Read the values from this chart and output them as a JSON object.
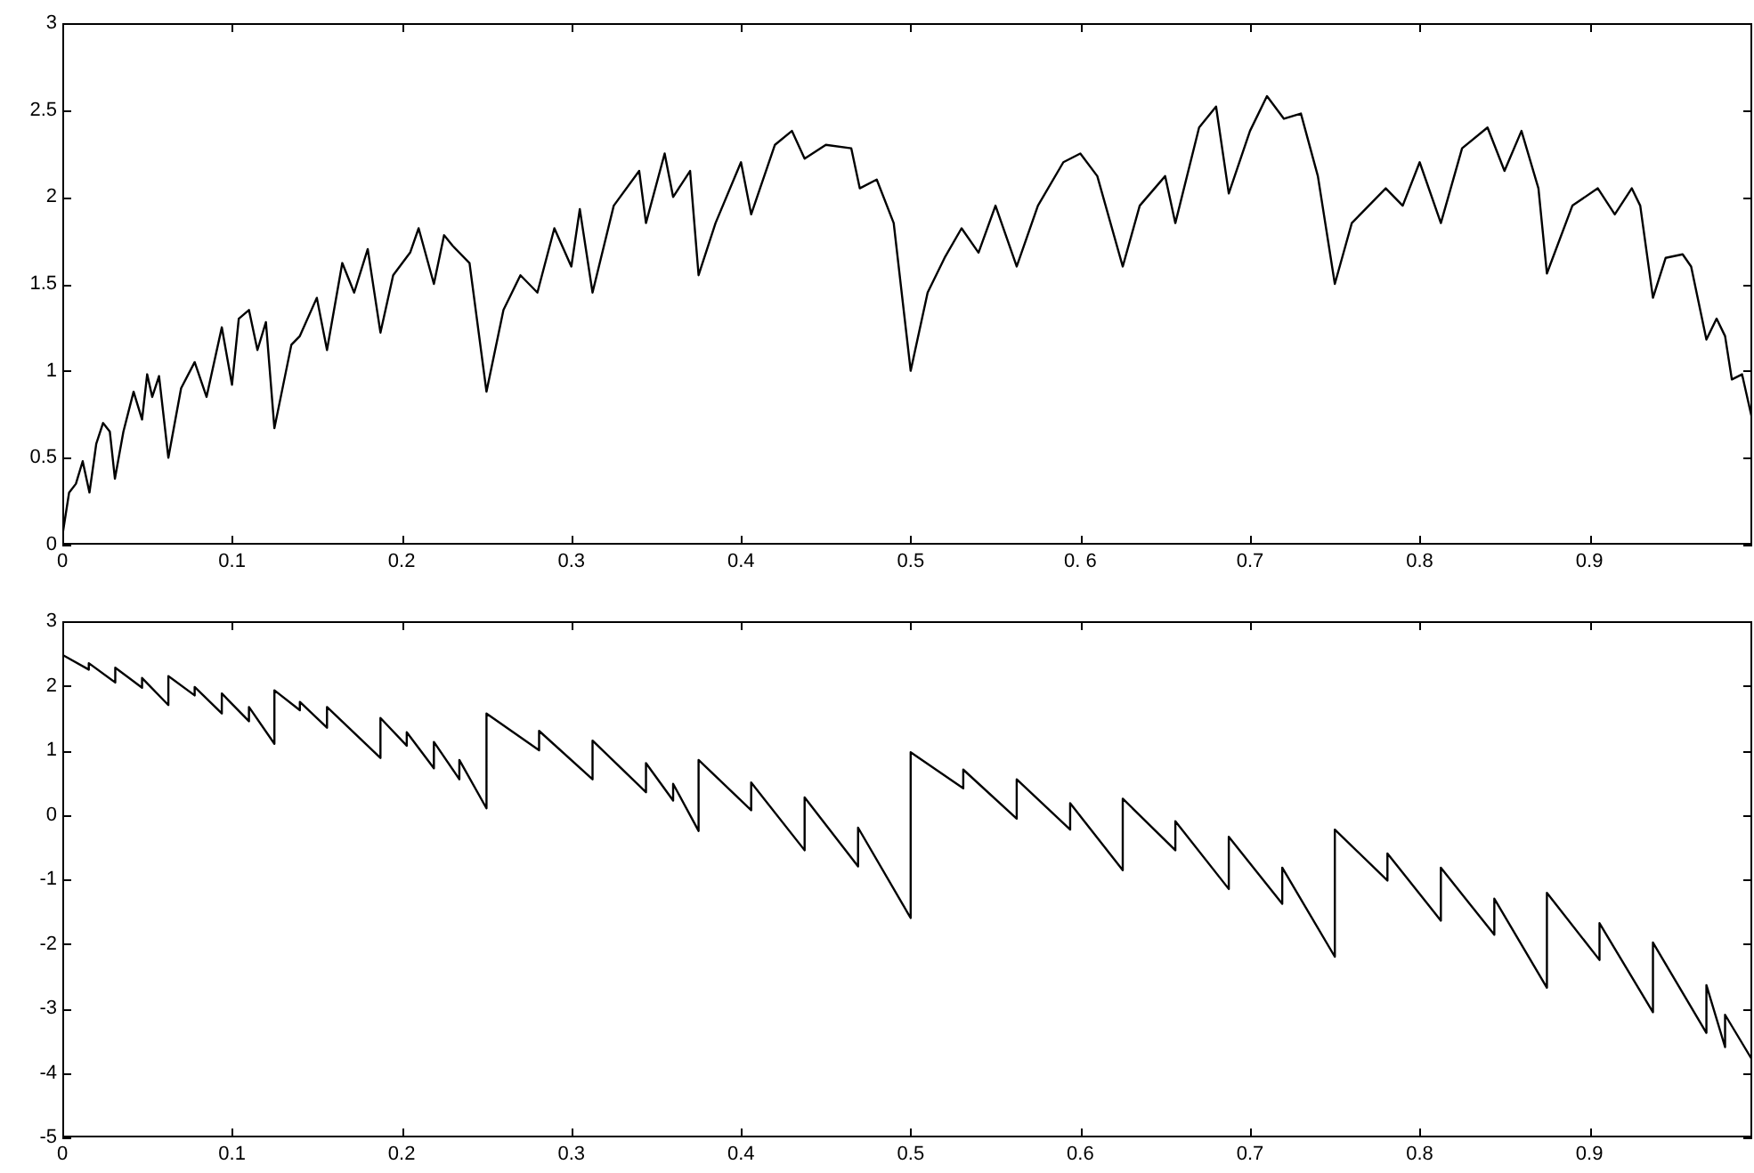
{
  "chart_data": [
    {
      "type": "line",
      "xlim": [
        0,
        0.996
      ],
      "ylim": [
        0,
        3
      ],
      "xticks": [
        0,
        0.1,
        0.2,
        0.3,
        0.4,
        0.5,
        {
          "value": 0.6,
          "label": "0. 6"
        },
        0.7,
        0.8,
        0.9
      ],
      "yticks": [
        0,
        0.5,
        1,
        1.5,
        2,
        2.5,
        3
      ],
      "grid": false,
      "legend": false,
      "marker": "none",
      "line_style": "solid",
      "series": [
        {
          "color": "#000000",
          "x": [
            0,
            0.004,
            0.008,
            0.012,
            0.016,
            0.02,
            0.024,
            0.028,
            0.031,
            0.036,
            0.042,
            0.047,
            0.05,
            0.053,
            0.057,
            0.0625,
            0.07,
            0.078,
            0.085,
            0.094,
            0.1,
            0.104,
            0.11,
            0.115,
            0.12,
            0.125,
            0.135,
            0.14,
            0.15,
            0.156,
            0.165,
            0.172,
            0.18,
            0.1875,
            0.195,
            0.205,
            0.21,
            0.219,
            0.225,
            0.23,
            0.24,
            0.25,
            0.26,
            0.27,
            0.28,
            0.29,
            0.3,
            0.305,
            0.3125,
            0.325,
            0.34,
            0.344,
            0.355,
            0.36,
            0.37,
            0.375,
            0.385,
            0.4,
            0.406,
            0.42,
            0.43,
            0.4375,
            0.45,
            0.465,
            0.47,
            0.48,
            0.49,
            0.5,
            0.51,
            0.52,
            0.53,
            0.54,
            0.55,
            0.5625,
            0.575,
            0.59,
            0.6,
            0.61,
            0.625,
            0.635,
            0.65,
            0.656,
            0.67,
            0.68,
            0.6875,
            0.7,
            0.71,
            0.72,
            0.73,
            0.74,
            0.75,
            0.76,
            0.78,
            0.79,
            0.8,
            0.8125,
            0.825,
            0.84,
            0.85,
            0.86,
            0.87,
            0.875,
            0.89,
            0.905,
            0.915,
            0.925,
            0.93,
            0.9375,
            0.945,
            0.955,
            0.96,
            0.969,
            0.975,
            0.98,
            0.984,
            0.99,
            0.996
          ],
          "values": [
            0.05,
            0.3,
            0.35,
            0.48,
            0.3,
            0.58,
            0.7,
            0.65,
            0.38,
            0.65,
            0.88,
            0.72,
            0.98,
            0.85,
            0.97,
            0.5,
            0.9,
            1.05,
            0.85,
            1.25,
            0.92,
            1.3,
            1.35,
            1.12,
            1.28,
            0.67,
            1.15,
            1.2,
            1.42,
            1.12,
            1.62,
            1.45,
            1.7,
            1.22,
            1.55,
            1.68,
            1.82,
            1.5,
            1.78,
            1.72,
            1.62,
            0.88,
            1.35,
            1.55,
            1.45,
            1.82,
            1.6,
            1.93,
            1.45,
            1.95,
            2.15,
            1.85,
            2.25,
            2.0,
            2.15,
            1.55,
            1.85,
            2.2,
            1.9,
            2.3,
            2.38,
            2.22,
            2.3,
            2.28,
            2.05,
            2.1,
            1.85,
            1.0,
            1.45,
            1.65,
            1.82,
            1.68,
            1.95,
            1.6,
            1.95,
            2.2,
            2.25,
            2.12,
            1.6,
            1.95,
            2.12,
            1.85,
            2.4,
            2.52,
            2.02,
            2.38,
            2.58,
            2.45,
            2.48,
            2.12,
            1.5,
            1.85,
            2.05,
            1.95,
            2.2,
            1.85,
            2.28,
            2.4,
            2.15,
            2.38,
            2.05,
            1.56,
            1.95,
            2.05,
            1.9,
            2.05,
            1.95,
            1.42,
            1.65,
            1.67,
            1.6,
            1.18,
            1.3,
            1.2,
            0.95,
            0.98,
            0.72
          ]
        }
      ]
    },
    {
      "type": "line",
      "xlim": [
        0,
        0.996
      ],
      "ylim": [
        -5,
        3
      ],
      "xticks": [
        0,
        0.1,
        0.2,
        0.3,
        0.4,
        0.5,
        0.6,
        0.7,
        0.8,
        0.9
      ],
      "yticks": [
        -5,
        -4,
        -3,
        -2,
        -1,
        0,
        1,
        2,
        3
      ],
      "grid": false,
      "legend": false,
      "marker": "none",
      "line_style": "solid",
      "series": [
        {
          "color": "#000000",
          "x": [
            0,
            0.0156,
            0.0156,
            0.0312,
            0.0312,
            0.047,
            0.047,
            0.0625,
            0.0625,
            0.078,
            0.078,
            0.094,
            0.094,
            0.11,
            0.11,
            0.125,
            0.125,
            0.14,
            0.14,
            0.156,
            0.156,
            0.1875,
            0.1875,
            0.203,
            0.203,
            0.219,
            0.219,
            0.234,
            0.234,
            0.25,
            0.25,
            0.281,
            0.281,
            0.3125,
            0.3125,
            0.344,
            0.344,
            0.36,
            0.36,
            0.375,
            0.375,
            0.406,
            0.406,
            0.4375,
            0.4375,
            0.469,
            0.469,
            0.5,
            0.5,
            0.531,
            0.531,
            0.5625,
            0.5625,
            0.594,
            0.594,
            0.625,
            0.625,
            0.656,
            0.656,
            0.6875,
            0.6875,
            0.719,
            0.719,
            0.75,
            0.75,
            0.781,
            0.781,
            0.8125,
            0.8125,
            0.844,
            0.844,
            0.875,
            0.875,
            0.906,
            0.906,
            0.9375,
            0.9375,
            0.969,
            0.969,
            0.98,
            0.98,
            0.996
          ],
          "values": [
            2.48,
            2.25,
            2.35,
            2.05,
            2.28,
            1.97,
            2.12,
            1.7,
            2.15,
            1.85,
            1.98,
            1.57,
            1.88,
            1.45,
            1.67,
            1.1,
            1.93,
            1.62,
            1.75,
            1.35,
            1.67,
            0.88,
            1.5,
            1.07,
            1.28,
            0.72,
            1.13,
            0.55,
            0.85,
            0.1,
            1.57,
            1.0,
            1.3,
            0.55,
            1.15,
            0.35,
            0.8,
            0.22,
            0.48,
            -0.25,
            0.85,
            0.07,
            0.5,
            -0.55,
            0.27,
            -0.8,
            -0.2,
            -1.6,
            0.97,
            0.41,
            0.7,
            -0.06,
            0.55,
            -0.23,
            0.18,
            -0.86,
            0.25,
            -0.55,
            -0.1,
            -1.15,
            -0.34,
            -1.38,
            -0.82,
            -2.2,
            -0.23,
            -1.02,
            -0.6,
            -1.64,
            -0.82,
            -1.86,
            -1.3,
            -2.68,
            -1.21,
            -2.25,
            -1.68,
            -3.06,
            -1.98,
            -3.38,
            -2.64,
            -3.6,
            -3.1,
            -3.8
          ]
        }
      ]
    }
  ]
}
